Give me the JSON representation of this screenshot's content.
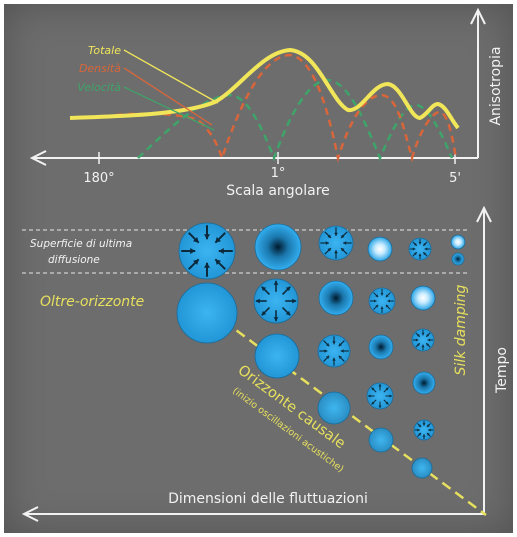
{
  "top_panel": {
    "legend": {
      "total": "Totale",
      "density": "Densità",
      "velocity": "Velocità"
    },
    "x_ticks": [
      "180°",
      "1°",
      "5'"
    ],
    "x_label": "Scala angolare",
    "y_label": "Anisotropia"
  },
  "bottom_panel": {
    "last_scattering": [
      "Superficie di ultima",
      "diffusione"
    ],
    "beyond_horizon": "Oltre-orizzonte",
    "causal_horizon": "Orizzonte causale",
    "causal_sub": "(inizio oscillazioni acustiche)",
    "silk": "Silk damping",
    "x_label": "Dimensioni delle fluttuazioni",
    "y_label": "Tempo"
  },
  "colors": {
    "background": "#6d6d6d",
    "axis": "#f2f2f2",
    "total": "#f1e65a",
    "density": "#d9663a",
    "velocity": "#3fa46a",
    "blob": "#2aa4e6",
    "label_yellow": "#e7e05e"
  },
  "icons": {
    "blob_inward": "inward-arrows-icon",
    "blob_outward": "outward-arrows-icon",
    "blob_dark_center": "dark-center-icon",
    "blob_bright_center": "bright-center-icon"
  }
}
